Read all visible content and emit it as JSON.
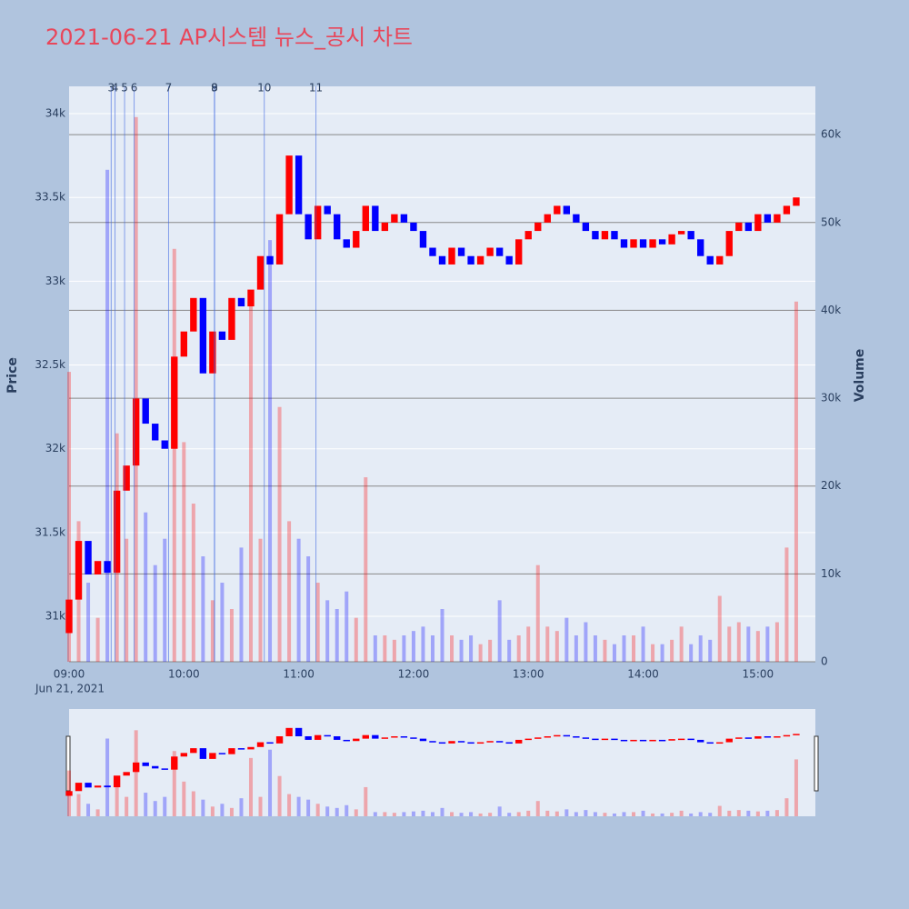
{
  "chart_data": {
    "type": "candlestick",
    "title": "2021-06-21 AP시스템 뉴스_공시 차트",
    "y_label": "Price",
    "y2_label": "Volume",
    "x_date_label": "Jun 21, 2021",
    "x": [
      "09:00",
      "09:05",
      "09:10",
      "09:15",
      "09:20",
      "09:25",
      "09:30",
      "09:35",
      "09:40",
      "09:45",
      "09:50",
      "09:55",
      "10:00",
      "10:05",
      "10:10",
      "10:15",
      "10:20",
      "10:25",
      "10:30",
      "10:35",
      "10:40",
      "10:45",
      "10:50",
      "10:55",
      "11:00",
      "11:05",
      "11:10",
      "11:15",
      "11:20",
      "11:25",
      "11:30",
      "11:35",
      "11:40",
      "11:45",
      "11:50",
      "11:55",
      "12:00",
      "12:05",
      "12:10",
      "12:15",
      "12:20",
      "12:25",
      "12:30",
      "12:35",
      "12:40",
      "12:45",
      "12:50",
      "12:55",
      "13:00",
      "13:05",
      "13:10",
      "13:15",
      "13:20",
      "13:25",
      "13:30",
      "13:35",
      "13:40",
      "13:45",
      "13:50",
      "13:55",
      "14:00",
      "14:05",
      "14:10",
      "14:15",
      "14:20",
      "14:25",
      "14:30",
      "14:35",
      "14:40",
      "14:45",
      "14:50",
      "14:55",
      "15:00",
      "15:05",
      "15:10",
      "15:15",
      "15:20"
    ],
    "open": [
      30900,
      31100,
      31450,
      31250,
      31330,
      31260,
      31750,
      31900,
      32300,
      32150,
      32050,
      32000,
      32550,
      32700,
      32900,
      32450,
      32700,
      32650,
      32900,
      32850,
      32950,
      33150,
      33100,
      33400,
      33750,
      33400,
      33250,
      33450,
      33400,
      33250,
      33200,
      33300,
      33450,
      33300,
      33350,
      33400,
      33350,
      33300,
      33200,
      33150,
      33100,
      33200,
      33150,
      33100,
      33150,
      33200,
      33150,
      33100,
      33250,
      33300,
      33350,
      33400,
      33450,
      33400,
      33350,
      33300,
      33250,
      33300,
      33250,
      33200,
      33250,
      33200,
      33250,
      33220,
      33280,
      33300,
      33250,
      33150,
      33100,
      33150,
      33300,
      33350,
      33300,
      33400,
      33350,
      33400,
      33450
    ],
    "close": [
      31100,
      31450,
      31250,
      31330,
      31260,
      31750,
      31900,
      32300,
      32150,
      32050,
      32000,
      32550,
      32700,
      32900,
      32450,
      32700,
      32650,
      32900,
      32850,
      32950,
      33150,
      33100,
      33400,
      33750,
      33400,
      33250,
      33450,
      33400,
      33250,
      33200,
      33300,
      33450,
      33300,
      33350,
      33400,
      33350,
      33300,
      33200,
      33150,
      33100,
      33200,
      33150,
      33100,
      33150,
      33200,
      33150,
      33100,
      33250,
      33300,
      33350,
      33400,
      33450,
      33400,
      33350,
      33300,
      33250,
      33300,
      33250,
      33200,
      33250,
      33200,
      33250,
      33220,
      33280,
      33300,
      33250,
      33150,
      33100,
      33150,
      33300,
      33350,
      33300,
      33400,
      33350,
      33400,
      33450,
      33500
    ],
    "volume": [
      33000,
      16000,
      9000,
      5000,
      56000,
      26000,
      14000,
      62000,
      17000,
      11000,
      14000,
      47000,
      25000,
      18000,
      12000,
      7000,
      9000,
      6000,
      13000,
      42000,
      14000,
      48000,
      29000,
      16000,
      14000,
      12000,
      9000,
      7000,
      6000,
      8000,
      5000,
      21000,
      3000,
      3000,
      2500,
      3000,
      3500,
      4000,
      3000,
      6000,
      3000,
      2500,
      3000,
      2000,
      2500,
      7000,
      2500,
      3000,
      4000,
      11000,
      4000,
      3500,
      5000,
      3000,
      4500,
      3000,
      2500,
      2000,
      3000,
      3000,
      4000,
      2000,
      2000,
      2500,
      4000,
      2000,
      3000,
      2500,
      7500,
      4000,
      4500,
      4000,
      3500,
      4000,
      4500,
      13000,
      41000
    ],
    "up_color": "#ff0000",
    "down_color": "#0000ff",
    "xlim": [
      "09:00",
      "15:30"
    ],
    "xticks": [
      "09:00",
      "10:00",
      "11:00",
      "12:00",
      "13:00",
      "14:00",
      "15:00"
    ],
    "ylim": [
      30729,
      34163
    ],
    "yticks": [
      {
        "value": 31000,
        "label": "31k"
      },
      {
        "value": 31500,
        "label": "31.5k"
      },
      {
        "value": 32000,
        "label": "32k"
      },
      {
        "value": 32500,
        "label": "32.5k"
      },
      {
        "value": 33000,
        "label": "33k"
      },
      {
        "value": 33500,
        "label": "33.5k"
      },
      {
        "value": 34000,
        "label": "34k"
      }
    ],
    "y2lim": [
      0,
      65500
    ],
    "y2ticks": [
      0,
      {
        "value": 10000,
        "label": "10k"
      },
      {
        "value": 20000,
        "label": "20k"
      },
      {
        "value": 30000,
        "label": "30k"
      },
      {
        "value": 40000,
        "label": "40k"
      },
      {
        "value": 50000,
        "label": "50k"
      },
      {
        "value": 60000,
        "label": "60k"
      }
    ],
    "annotations": [
      {
        "label": "3",
        "x": "09:22"
      },
      {
        "label": "4",
        "x": "09:24"
      },
      {
        "label": "5",
        "x": "09:29"
      },
      {
        "label": "6",
        "x": "09:34"
      },
      {
        "label": "7",
        "x": "09:52"
      },
      {
        "label": "8",
        "x": "10:16"
      },
      {
        "label": "9",
        "x": "10:16"
      },
      {
        "label": "10",
        "x": "10:42"
      },
      {
        "label": "11",
        "x": "11:09"
      }
    ],
    "grid": true,
    "range_slider": true
  }
}
